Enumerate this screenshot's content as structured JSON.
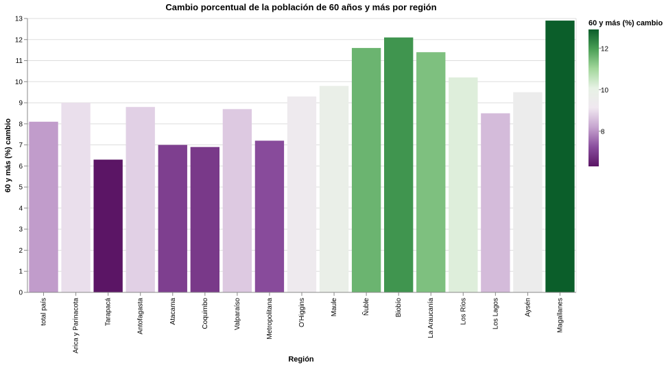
{
  "chart_data": {
    "type": "bar",
    "title": "Cambio porcentual de la población de 60 años y más por región",
    "xlabel": "Región",
    "ylabel": "60 y más (%) cambio",
    "categories": [
      "total país",
      "Arica y Parinacota",
      "Tarapacá",
      "Antofagasta",
      "Atacama",
      "Coquimbo",
      "Valparaíso",
      "Metropolitana",
      "O'Higgins",
      "Maule",
      "Ñuble",
      "Biobío",
      "La Araucanía",
      "Los Ríos",
      "Los Lagos",
      "Aysén",
      "Magallanes"
    ],
    "values": [
      8.1,
      9.0,
      6.3,
      8.8,
      7.0,
      6.9,
      8.7,
      7.2,
      9.3,
      9.8,
      11.6,
      12.1,
      11.4,
      10.2,
      8.5,
      9.5,
      12.9
    ],
    "ylim": [
      0,
      13
    ],
    "yticks": [
      0,
      1,
      2,
      3,
      4,
      5,
      6,
      7,
      8,
      9,
      10,
      11,
      12,
      13
    ],
    "grid": true,
    "color_scale": {
      "scheme": "purple-green diverging",
      "domain": [
        6.3,
        12.9
      ],
      "colors": [
        "#5b1565",
        "#8a4e9e",
        "#c6a4cf",
        "#f0e8f0",
        "#e7f2e5",
        "#a2d79b",
        "#4a9f56",
        "#0b5e2a"
      ]
    },
    "legend": {
      "title": "60 y más (%) cambio",
      "position": "right",
      "ticks": [
        8,
        10,
        12
      ]
    }
  }
}
